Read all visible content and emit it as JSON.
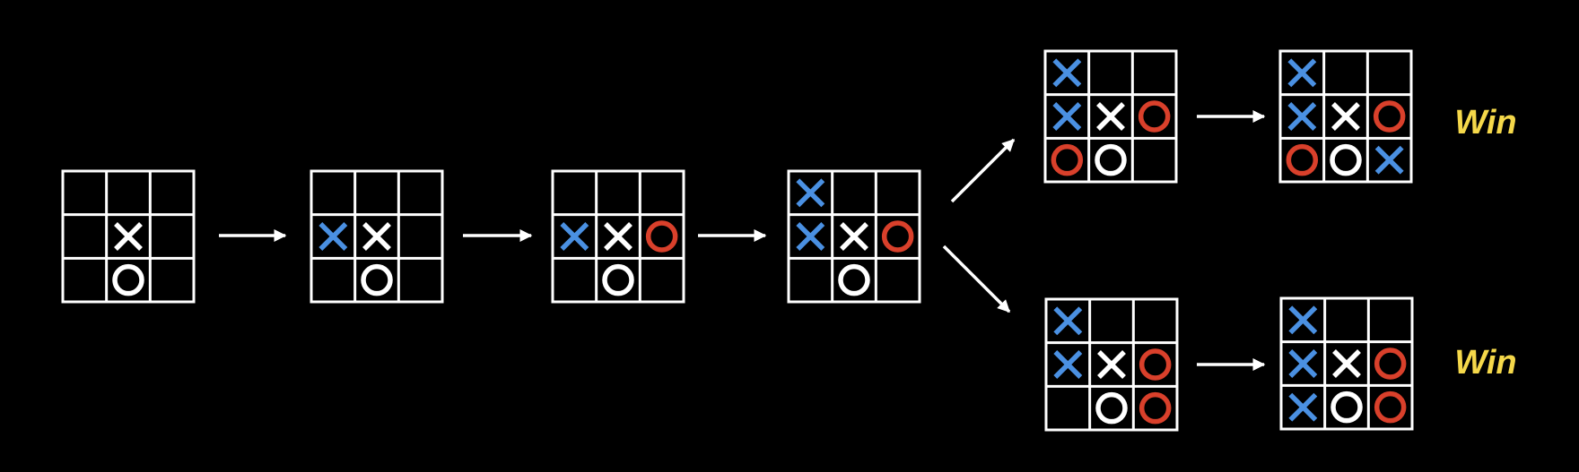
{
  "boards": [
    {
      "cells": [
        null,
        null,
        null,
        null,
        {
          "mark": "X",
          "color": "#ffffff"
        },
        null,
        null,
        {
          "mark": "O",
          "color": "#ffffff"
        },
        null
      ]
    },
    {
      "cells": [
        null,
        null,
        null,
        {
          "mark": "X",
          "color": "#4a90e2"
        },
        {
          "mark": "X",
          "color": "#ffffff"
        },
        null,
        null,
        {
          "mark": "O",
          "color": "#ffffff"
        },
        null
      ]
    },
    {
      "cells": [
        null,
        null,
        null,
        {
          "mark": "X",
          "color": "#4a90e2"
        },
        {
          "mark": "X",
          "color": "#ffffff"
        },
        {
          "mark": "O",
          "color": "#d9402b"
        },
        null,
        {
          "mark": "O",
          "color": "#ffffff"
        },
        null
      ]
    },
    {
      "cells": [
        {
          "mark": "X",
          "color": "#4a90e2"
        },
        null,
        null,
        {
          "mark": "X",
          "color": "#4a90e2"
        },
        {
          "mark": "X",
          "color": "#ffffff"
        },
        {
          "mark": "O",
          "color": "#d9402b"
        },
        null,
        {
          "mark": "O",
          "color": "#ffffff"
        },
        null
      ]
    },
    {
      "cells": [
        {
          "mark": "X",
          "color": "#4a90e2"
        },
        null,
        null,
        {
          "mark": "X",
          "color": "#4a90e2"
        },
        {
          "mark": "X",
          "color": "#ffffff"
        },
        {
          "mark": "O",
          "color": "#d9402b"
        },
        {
          "mark": "O",
          "color": "#d9402b"
        },
        {
          "mark": "O",
          "color": "#ffffff"
        },
        null
      ]
    },
    {
      "cells": [
        {
          "mark": "X",
          "color": "#4a90e2"
        },
        null,
        null,
        {
          "mark": "X",
          "color": "#4a90e2"
        },
        {
          "mark": "X",
          "color": "#ffffff"
        },
        {
          "mark": "O",
          "color": "#d9402b"
        },
        {
          "mark": "O",
          "color": "#d9402b"
        },
        {
          "mark": "O",
          "color": "#ffffff"
        },
        {
          "mark": "X",
          "color": "#4a90e2"
        }
      ]
    },
    {
      "cells": [
        {
          "mark": "X",
          "color": "#4a90e2"
        },
        null,
        null,
        {
          "mark": "X",
          "color": "#4a90e2"
        },
        {
          "mark": "X",
          "color": "#ffffff"
        },
        {
          "mark": "O",
          "color": "#d9402b"
        },
        null,
        {
          "mark": "O",
          "color": "#ffffff"
        },
        {
          "mark": "O",
          "color": "#d9402b"
        }
      ]
    },
    {
      "cells": [
        {
          "mark": "X",
          "color": "#4a90e2"
        },
        null,
        null,
        {
          "mark": "X",
          "color": "#4a90e2"
        },
        {
          "mark": "X",
          "color": "#ffffff"
        },
        {
          "mark": "O",
          "color": "#d9402b"
        },
        {
          "mark": "X",
          "color": "#4a90e2"
        },
        {
          "mark": "O",
          "color": "#ffffff"
        },
        {
          "mark": "O",
          "color": "#d9402b"
        }
      ]
    }
  ],
  "outcomes": [
    "Win",
    "Win"
  ]
}
